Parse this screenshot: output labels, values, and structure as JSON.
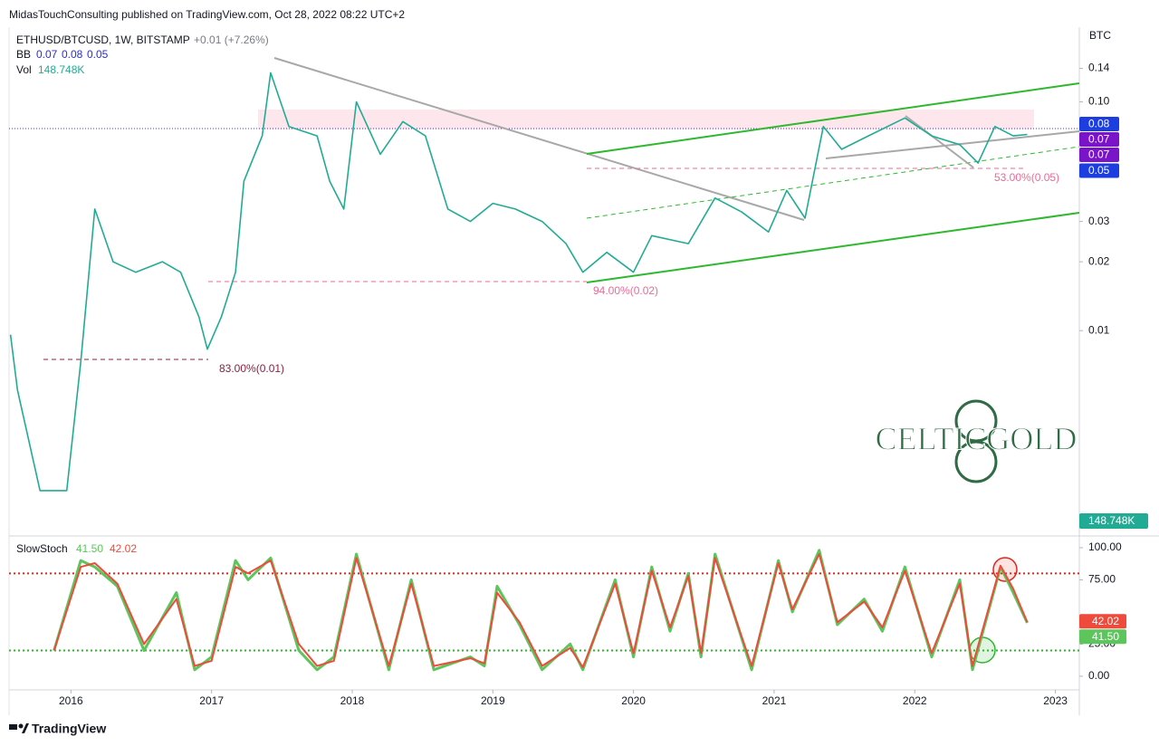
{
  "publisher": "MidasTouchConsulting published on TradingView.com, Oct 28, 2022 08:22 UTC+2",
  "footer": "TradingView",
  "watermark": "CELTICGOLD",
  "chart_data": [
    {
      "type": "line",
      "title": "ETHUSD/BTCUSD, 1W, BITSTAMP",
      "change": "+0.01 (+7.26%)",
      "axis_unit": "BTC",
      "log_scale": true,
      "grid": false,
      "color": "#22ab94",
      "x": [
        2015.57,
        2015.62,
        2015.78,
        2015.97,
        2016.07,
        2016.17,
        2016.3,
        2016.46,
        2016.65,
        2016.78,
        2016.91,
        2016.97,
        2017.07,
        2017.17,
        2017.23,
        2017.36,
        2017.42,
        2017.55,
        2017.75,
        2017.84,
        2017.94,
        2018.03,
        2018.2,
        2018.36,
        2018.52,
        2018.68,
        2018.84,
        2019.0,
        2019.16,
        2019.35,
        2019.52,
        2019.64,
        2019.81,
        2020.0,
        2020.13,
        2020.39,
        2020.58,
        2020.77,
        2020.96,
        2021.09,
        2021.22,
        2021.35,
        2021.48,
        2021.67,
        2021.93,
        2022.12,
        2022.32,
        2022.45,
        2022.57,
        2022.7,
        2022.8
      ],
      "values": [
        0.0096,
        0.0055,
        0.002,
        0.002,
        0.0073,
        0.034,
        0.02,
        0.018,
        0.02,
        0.018,
        0.0115,
        0.0083,
        0.0115,
        0.018,
        0.045,
        0.071,
        0.134,
        0.078,
        0.071,
        0.045,
        0.034,
        0.1,
        0.059,
        0.082,
        0.071,
        0.034,
        0.03,
        0.036,
        0.034,
        0.03,
        0.024,
        0.018,
        0.022,
        0.018,
        0.026,
        0.024,
        0.038,
        0.033,
        0.027,
        0.041,
        0.031,
        0.078,
        0.062,
        0.071,
        0.085,
        0.071,
        0.065,
        0.054,
        0.078,
        0.071,
        0.072
      ],
      "xlim": [
        2015.56,
        2023.17
      ],
      "ylim": [
        0.00129,
        0.212
      ],
      "yticks": [
        0.01,
        0.02,
        0.03,
        0.05,
        {
          "value": 0.1,
          "label": "0.10"
        },
        0.14
      ],
      "bb": {
        "name": "BB",
        "values": [
          0.07,
          0.08,
          0.05
        ],
        "color": "#2a2ae8"
      },
      "volume": {
        "name": "Vol",
        "value": 148748,
        "value_label": "148.748K",
        "color": "#22ab94"
      },
      "price_tags": [
        {
          "value": 0.08,
          "color": "#1c3ee0"
        },
        {
          "value": 0.07,
          "color": "#7a14c8"
        },
        {
          "value": 0.07,
          "color": "#7a14c8"
        },
        {
          "value": 0.05,
          "color": "#1c3ee0"
        }
      ],
      "annotations": [
        "83.00%(0.01)",
        "94.00%(0.02)",
        "53.00%(0.05)"
      ]
    },
    {
      "type": "line",
      "title": "SlowStoch",
      "x": [
        2015.88,
        2016.07,
        2016.17,
        2016.33,
        2016.52,
        2016.75,
        2016.88,
        2017.0,
        2017.17,
        2017.26,
        2017.42,
        2017.62,
        2017.75,
        2017.87,
        2018.03,
        2018.26,
        2018.42,
        2018.58,
        2018.84,
        2018.94,
        2019.03,
        2019.19,
        2019.35,
        2019.55,
        2019.64,
        2019.87,
        2020.0,
        2020.13,
        2020.26,
        2020.39,
        2020.48,
        2020.58,
        2020.84,
        2021.03,
        2021.13,
        2021.32,
        2021.45,
        2021.64,
        2021.77,
        2021.93,
        2022.12,
        2022.32,
        2022.41,
        2022.61,
        2022.7,
        2022.8
      ],
      "series": [
        {
          "color": "#5cc65c",
          "values": [
            20,
            90,
            85,
            70,
            20,
            65,
            5,
            15,
            90,
            75,
            92,
            20,
            5,
            15,
            95,
            5,
            75,
            5,
            15,
            8,
            70,
            40,
            5,
            25,
            5,
            75,
            15,
            85,
            35,
            80,
            15,
            95,
            5,
            90,
            50,
            98,
            40,
            60,
            35,
            85,
            15,
            75,
            5,
            85,
            65,
            41.5
          ],
          "value_label": "41.50"
        },
        {
          "color": "#ef4b3c",
          "values": [
            20,
            85,
            88,
            72,
            25,
            60,
            8,
            12,
            85,
            80,
            90,
            25,
            8,
            12,
            92,
            8,
            72,
            8,
            14,
            10,
            65,
            42,
            8,
            22,
            7,
            72,
            18,
            82,
            38,
            78,
            18,
            92,
            8,
            88,
            52,
            95,
            42,
            58,
            38,
            82,
            18,
            72,
            8,
            86,
            68,
            42.02
          ],
          "value_label": "42.02"
        }
      ],
      "levels": [
        {
          "value": 80,
          "color": "#e0271d"
        },
        {
          "value": 20,
          "color": "#2db52d"
        }
      ],
      "xlim": [
        2015.56,
        2023.17
      ],
      "xticks": [
        2016,
        2017,
        2018,
        2019,
        2020,
        2021,
        2022,
        2023
      ],
      "ylim": [
        -10.6,
        107
      ],
      "yticks": [
        {
          "value": 0,
          "label": "0.00"
        },
        {
          "value": 25,
          "label": "25.00"
        },
        {
          "value": 75,
          "label": "75.00"
        },
        {
          "value": 100,
          "label": "100.00"
        }
      ]
    }
  ]
}
